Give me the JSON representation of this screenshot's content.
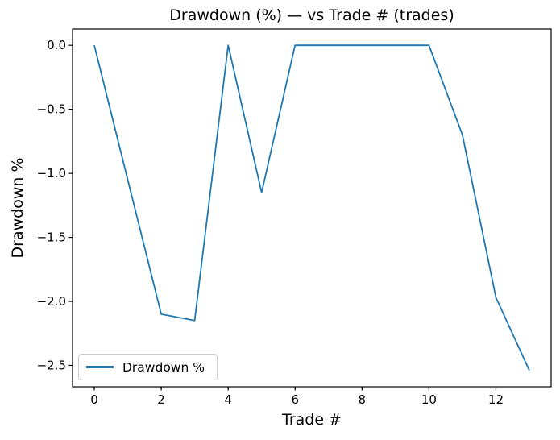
{
  "chart_data": {
    "type": "line",
    "title": "Drawdown (%) — vs Trade # (trades)",
    "xlabel": "Trade #",
    "ylabel": "Drawdown %",
    "x": [
      0,
      1,
      2,
      3,
      4,
      5,
      6,
      7,
      8,
      9,
      10,
      11,
      12,
      13
    ],
    "series": [
      {
        "name": "Drawdown %",
        "color": "#1f77b4",
        "values": [
          0.0,
          -1.05,
          -2.1,
          -2.15,
          0.0,
          -1.15,
          0.0,
          0.0,
          0.0,
          0.0,
          0.0,
          -0.7,
          -1.97,
          -2.54
        ]
      }
    ],
    "xlim": [
      -0.65,
      13.65
    ],
    "ylim": [
      -2.667,
      0.127
    ],
    "xticks": [
      0,
      2,
      4,
      6,
      8,
      10,
      12
    ],
    "xtick_labels": [
      "0",
      "2",
      "4",
      "6",
      "8",
      "10",
      "12"
    ],
    "yticks": [
      0,
      -0.5,
      -1,
      -1.5,
      -2,
      -2.5
    ],
    "ytick_labels": [
      "0.0",
      "−0.5",
      "−1.0",
      "−1.5",
      "−2.0",
      "−2.5"
    ],
    "grid": false,
    "legend": {
      "label": "Drawdown %",
      "position": "lower left"
    }
  },
  "colors": {
    "line": "#1f77b4",
    "axes": "#000000",
    "text": "#000000",
    "legend_border": "#cccccc",
    "background": "#ffffff"
  }
}
